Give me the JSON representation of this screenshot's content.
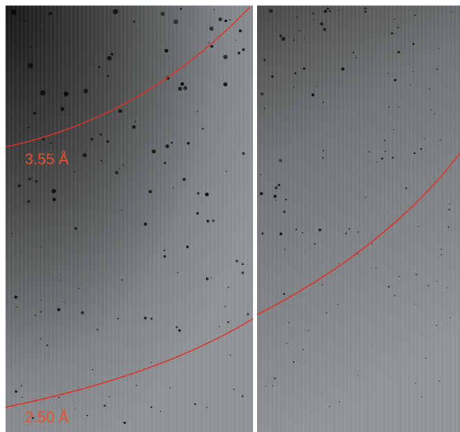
{
  "rings": [
    {
      "label": "3.55 Å"
    },
    {
      "label": "2.50 Å"
    }
  ]
}
